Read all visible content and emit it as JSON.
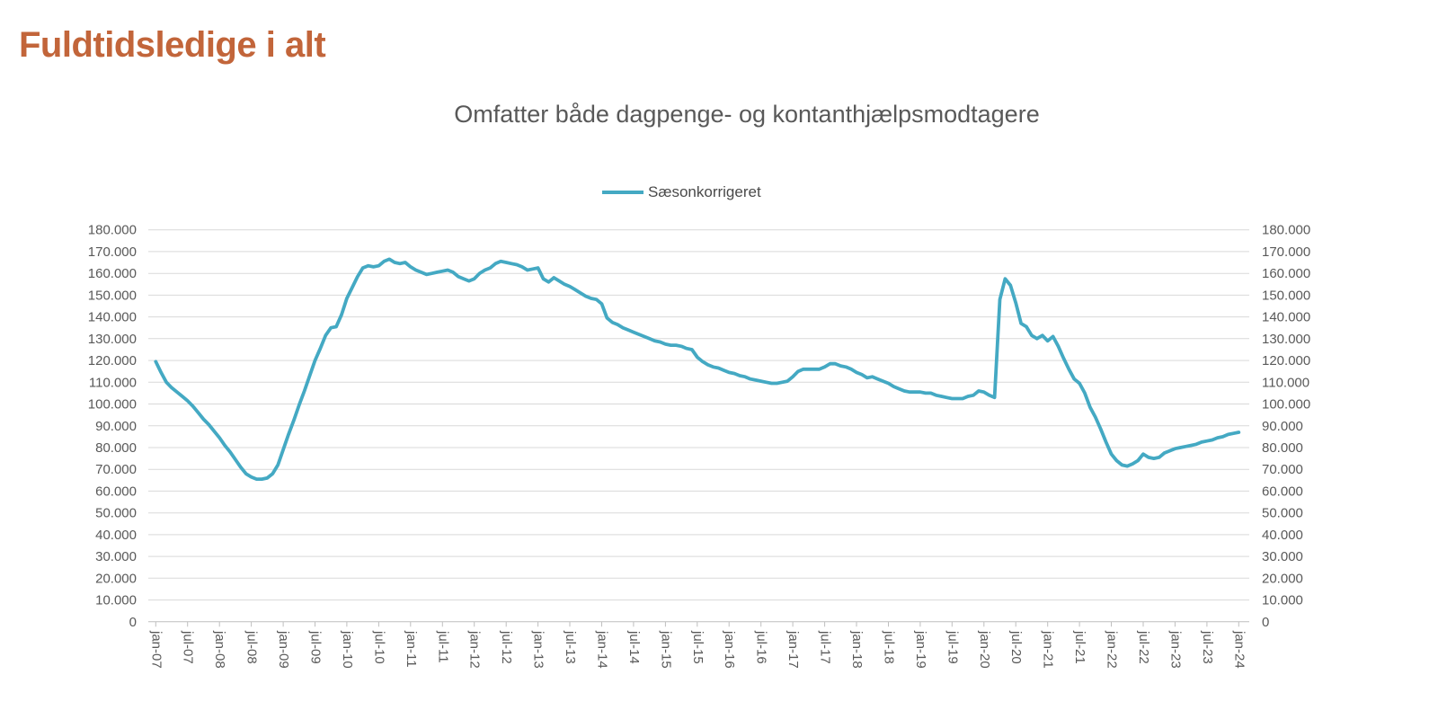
{
  "page": {
    "heading": "Fuldtidsledige i alt"
  },
  "chart": {
    "title": "Omfatter både dagpenge- og kontanthjælpsmodtagere",
    "legend": [
      {
        "label": "Sæsonkorrigeret",
        "color": "#44A9C3"
      }
    ]
  },
  "colors": {
    "heading_orange": "#C2653A",
    "series_teal": "#44A9C3",
    "text_gray": "#595959",
    "gridline_gray": "#D9D9D9",
    "axis_gray": "#BFBFBF",
    "background": "#FFFFFF"
  },
  "chart_data": {
    "type": "line",
    "title": "Omfatter både dagpenge- og kontanthjælpsmodtagere",
    "xlabel": "",
    "ylabel": "",
    "unit": "fuldtidsledige personer",
    "ylim": [
      0,
      180000
    ],
    "y_step": 10000,
    "grid": "horizontal",
    "legend_position": "top",
    "y_tick_labels": [
      "0",
      "10.000",
      "20.000",
      "30.000",
      "40.000",
      "50.000",
      "60.000",
      "70.000",
      "80.000",
      "90.000",
      "100.000",
      "110.000",
      "120.000",
      "130.000",
      "140.000",
      "150.000",
      "160.000",
      "170.000",
      "180.000"
    ],
    "x_tick_labels": [
      "jan-07",
      "jul-07",
      "jan-08",
      "jul-08",
      "jan-09",
      "jul-09",
      "jan-10",
      "jul-10",
      "jan-11",
      "jul-11",
      "jan-12",
      "jul-12",
      "jan-13",
      "jul-13",
      "jan-14",
      "jul-14",
      "jan-15",
      "jul-15",
      "jan-16",
      "jul-16",
      "jan-17",
      "jul-17",
      "jan-18",
      "jul-18",
      "jan-19",
      "jul-19",
      "jan-20",
      "jul-20",
      "jan-21",
      "jul-21",
      "jan-22",
      "jul-22",
      "jan-23",
      "jul-23",
      "jan-24"
    ],
    "series": [
      {
        "name": "Sæsonkorrigeret",
        "color": "#44A9C3",
        "start": "jan-07",
        "frequency": "monthly",
        "values": [
          119500,
          114500,
          110000,
          107500,
          105500,
          103500,
          101500,
          99000,
          96000,
          93000,
          90500,
          87500,
          84500,
          81000,
          78000,
          74500,
          71000,
          68000,
          66500,
          65500,
          65500,
          66000,
          68000,
          72000,
          79000,
          86000,
          92500,
          99500,
          106000,
          113000,
          120000,
          125500,
          131500,
          135000,
          135500,
          141000,
          148500,
          153500,
          158500,
          162500,
          163500,
          163000,
          163500,
          165500,
          166500,
          165000,
          164500,
          165000,
          163000,
          161500,
          160500,
          159500,
          160000,
          160500,
          161000,
          161500,
          160500,
          158500,
          157500,
          156500,
          157500,
          160000,
          161500,
          162500,
          164500,
          165500,
          165000,
          164500,
          164000,
          163000,
          161500,
          162000,
          162500,
          157500,
          156000,
          158000,
          156500,
          155000,
          154000,
          152500,
          151000,
          149500,
          148500,
          148000,
          146000,
          139500,
          137500,
          136500,
          135000,
          134000,
          133000,
          132000,
          131000,
          130000,
          129000,
          128500,
          127500,
          127000,
          127000,
          126500,
          125500,
          125000,
          121500,
          119500,
          118000,
          117000,
          116500,
          115500,
          114500,
          114000,
          113000,
          112500,
          111500,
          111000,
          110500,
          110000,
          109500,
          109500,
          110000,
          110500,
          112500,
          115000,
          116000,
          116000,
          116000,
          116000,
          117000,
          118500,
          118500,
          117500,
          117000,
          116000,
          114500,
          113500,
          112000,
          112500,
          111500,
          110500,
          109500,
          108000,
          107000,
          106000,
          105500,
          105500,
          105500,
          105000,
          105000,
          104000,
          103500,
          103000,
          102500,
          102500,
          102500,
          103500,
          104000,
          106000,
          105500,
          104000,
          103000,
          148000,
          157500,
          154500,
          146500,
          137000,
          135500,
          131500,
          130000,
          131500,
          129000,
          131000,
          126500,
          121000,
          116000,
          111500,
          109500,
          105000,
          98500,
          94000,
          88500,
          82500,
          77000,
          74000,
          72000,
          71500,
          72500,
          74000,
          77000,
          75500,
          75000,
          75500,
          77500,
          78500,
          79500,
          80000,
          80500,
          81000,
          81500,
          82500,
          83000,
          83500,
          84500,
          85000,
          86000,
          86500,
          87000
        ]
      }
    ]
  }
}
